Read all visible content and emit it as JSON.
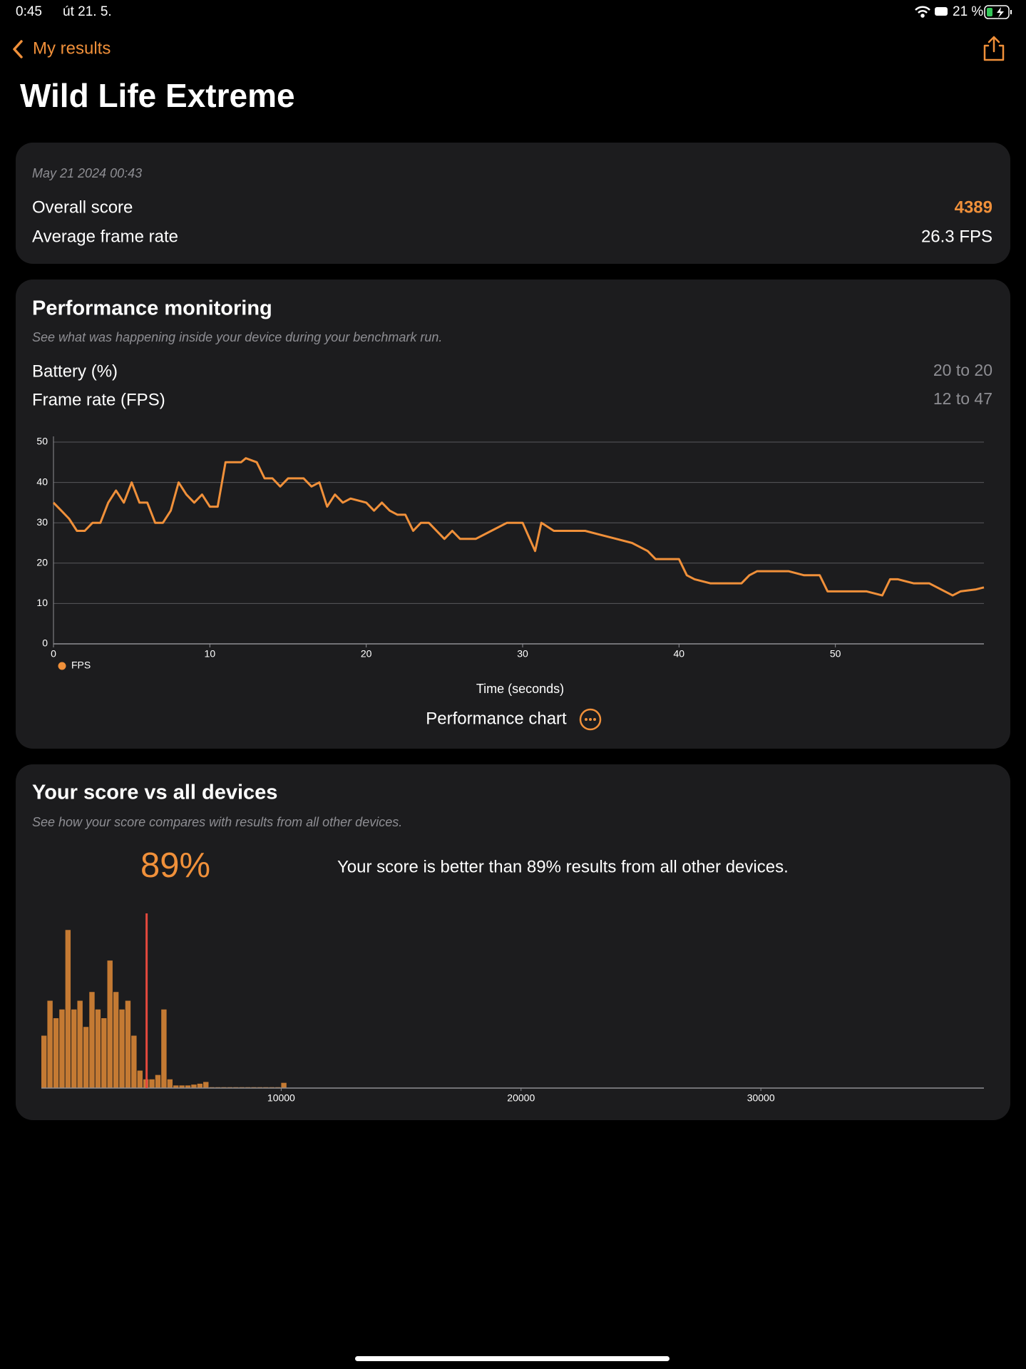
{
  "status_bar": {
    "time": "0:45",
    "date": "út 21. 5.",
    "battery": "21 %"
  },
  "nav": {
    "back": "My results"
  },
  "title": "Wild Life Extreme",
  "summary": {
    "date": "May 21 2024 00:43",
    "rows": [
      {
        "label": "Overall score",
        "value": 4389
      },
      {
        "label": "Average frame rate",
        "value": "26.3 FPS"
      }
    ]
  },
  "performance": {
    "title": "Performance monitoring",
    "subtitle": "See what was happening inside your device during your benchmark run.",
    "rows": [
      {
        "label": "Battery (%)",
        "value": "20 to 20"
      },
      {
        "label": "Frame rate (FPS)",
        "value": "12 to 47"
      }
    ],
    "button": "Performance chart"
  },
  "comparison": {
    "title": "Your score vs all devices",
    "subtitle": "See how your score compares with results from all other devices.",
    "percentile": "89%",
    "text": "Your score is better than 89% results from all other devices."
  },
  "chart_data": [
    {
      "type": "line",
      "x_label": "Time (seconds)",
      "x": [
        0,
        0.5,
        1,
        1.5,
        2,
        2.5,
        3,
        3.5,
        4,
        4.5,
        5,
        5.5,
        6,
        6.5,
        7,
        7.5,
        8,
        8.5,
        9,
        9.5,
        10,
        10.5,
        11,
        12,
        12.3,
        13,
        13.5,
        14,
        14.5,
        15,
        16,
        16.5,
        17,
        17.5,
        18,
        18.5,
        19,
        20,
        20.5,
        21,
        21.5,
        22,
        22.5,
        23,
        23.5,
        24,
        25,
        25.5,
        26,
        27,
        28,
        29,
        30,
        30.8,
        31.2,
        32,
        33,
        34,
        35,
        36,
        37,
        38,
        38.5,
        39,
        40,
        40.5,
        41,
        42,
        43,
        44,
        44.5,
        45,
        46,
        47,
        48,
        49,
        49.5,
        50,
        51,
        52,
        53,
        53.5,
        54,
        55,
        56,
        57,
        57.5,
        58,
        59,
        59.5
      ],
      "series": [
        {
          "name": "FPS",
          "color": "#f0903a",
          "values": [
            35,
            33,
            31,
            28,
            28,
            30,
            30,
            35,
            38,
            35,
            40,
            35,
            35,
            30,
            30,
            33,
            40,
            37,
            35,
            37,
            34,
            34,
            45,
            45,
            46,
            45,
            41,
            41,
            39,
            41,
            41,
            39,
            40,
            34,
            37,
            35,
            36,
            35,
            33,
            35,
            33,
            32,
            32,
            28,
            30,
            30,
            26,
            28,
            26,
            26,
            28,
            30,
            30,
            23,
            30,
            28,
            28,
            28,
            27,
            26,
            25,
            23,
            21,
            21,
            21,
            17,
            16,
            15,
            15,
            15,
            17,
            18,
            18,
            18,
            17,
            17,
            13,
            13,
            13,
            13,
            12,
            16,
            16,
            15,
            15,
            13,
            12,
            13,
            13.5,
            14
          ]
        }
      ],
      "xlim": [
        0,
        59.5
      ],
      "xticks": [
        0,
        10,
        20,
        30,
        40,
        50
      ],
      "ylim": [
        0,
        50
      ],
      "yticks": [
        0,
        10,
        20,
        30,
        40,
        50
      ],
      "grid": true,
      "legend": "bottom-left"
    },
    {
      "type": "histogram",
      "bins": [
        0,
        250,
        500,
        750,
        1000,
        1250,
        1500,
        1750,
        2000,
        2250,
        2500,
        2750,
        3000,
        3250,
        3500,
        3750,
        4000,
        4250,
        4500,
        4750,
        5000,
        5250,
        5500,
        5750,
        6000,
        6250,
        6500,
        6750,
        7000,
        7250,
        7500,
        7750,
        8000,
        8250,
        8500,
        8750,
        9000,
        9250,
        9500,
        9750,
        10000,
        10250
      ],
      "counts": [
        60,
        100,
        80,
        90,
        181,
        90,
        100,
        70,
        110,
        90,
        80,
        146,
        110,
        90,
        100,
        60,
        20,
        10,
        10,
        15,
        90,
        10,
        3,
        3,
        3,
        4,
        5,
        7,
        1,
        1,
        1,
        1,
        1,
        1,
        1,
        1,
        1,
        1,
        1,
        1,
        6
      ],
      "color": "#c47a33",
      "marker_color": "#e5483d",
      "xlim": [
        0,
        39300
      ],
      "xticks": [
        10000,
        20000,
        30000
      ],
      "ylim": [
        0,
        200
      ]
    }
  ]
}
